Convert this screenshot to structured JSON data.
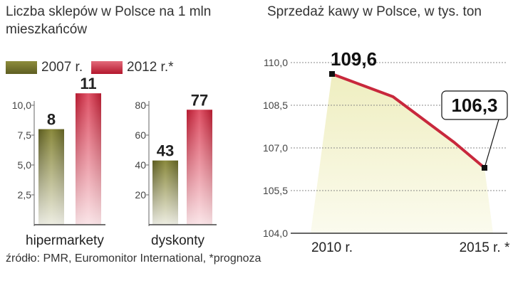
{
  "left": {
    "title": "Liczba sklepów w Polsce na 1 mln mieszkańców",
    "legend": [
      {
        "label": "2007 r.",
        "color": "#6e6e2e"
      },
      {
        "label": "2012 r.*",
        "color": "#c8283c"
      }
    ]
  },
  "right": {
    "title": "Sprzedaż kawy w Polsce, w tys. ton"
  },
  "source": "źródło: PMR, Euromonitor International, *prognoza",
  "chart_data": [
    {
      "type": "bar",
      "categories": [
        "hipermarkety"
      ],
      "series": [
        {
          "name": "2007 r.",
          "values": [
            8
          ]
        },
        {
          "name": "2012 r.*",
          "values": [
            11
          ]
        }
      ],
      "value_labels": [
        "8",
        "11"
      ],
      "yticks": [
        "2,5",
        "5,0",
        "7,5",
        "10,0"
      ],
      "ytick_values": [
        2.5,
        5.0,
        7.5,
        10.0
      ],
      "ylim": [
        0,
        12
      ],
      "xlabel": "hipermarkety"
    },
    {
      "type": "bar",
      "categories": [
        "dyskonty"
      ],
      "series": [
        {
          "name": "2007 r.",
          "values": [
            43
          ]
        },
        {
          "name": "2012 r.*",
          "values": [
            77
          ]
        }
      ],
      "value_labels": [
        "43",
        "77"
      ],
      "yticks": [
        "20",
        "40",
        "60",
        "80"
      ],
      "ytick_values": [
        20,
        40,
        60,
        80
      ],
      "ylim": [
        0,
        92
      ],
      "xlabel": "dyskonty"
    },
    {
      "type": "line",
      "title": "Sprzedaż kawy w Polsce, w tys. ton",
      "x": [
        2010,
        2011,
        2012,
        2013,
        2014,
        2015
      ],
      "xticks": [
        "2010 r.",
        "2015 r. *"
      ],
      "values": [
        109.6,
        109.2,
        108.8,
        108.0,
        107.2,
        106.3
      ],
      "point_labels": {
        "start": "109,6",
        "end": "106,3"
      },
      "yticks": [
        "104,0",
        "105,5",
        "107,0",
        "108,5",
        "110,0"
      ],
      "ytick_values": [
        104.0,
        105.5,
        107.0,
        108.5,
        110.0
      ],
      "ylim": [
        104.0,
        110.0
      ],
      "grid": true,
      "line_color": "#c8283c",
      "area_color": "#f1f0c8"
    }
  ]
}
